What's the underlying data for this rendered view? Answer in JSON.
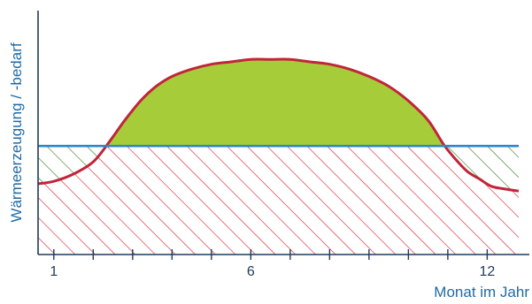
{
  "chart_data": {
    "type": "area",
    "xlabel": "Monat im Jahr",
    "ylabel": "Wärmeerzeugung / -bedarf",
    "x_ticks_labeled": [
      1,
      6,
      12
    ],
    "x_range": [
      0.6,
      12.8
    ],
    "y_range": [
      0,
      1
    ],
    "grid": false,
    "series": [
      {
        "values_x": [
          0.6,
          1.0,
          1.5,
          2.0,
          2.4,
          2.8,
          3.2,
          3.6,
          4.0,
          4.5,
          5.0,
          5.5,
          6.0,
          6.5,
          7.0,
          7.5,
          8.0,
          8.5,
          9.0,
          9.5,
          10.0,
          10.5,
          10.9,
          11.2,
          11.5,
          11.8,
          12.1,
          12.4,
          12.8
        ],
        "values_y": [
          0.29,
          0.3,
          0.33,
          0.38,
          0.46,
          0.55,
          0.63,
          0.69,
          0.73,
          0.76,
          0.78,
          0.79,
          0.8,
          0.8,
          0.8,
          0.79,
          0.78,
          0.76,
          0.73,
          0.69,
          0.63,
          0.55,
          0.45,
          0.39,
          0.34,
          0.31,
          0.28,
          0.27,
          0.26
        ],
        "color": "#c0253a"
      },
      {
        "constant_y": 0.445,
        "color": "#2e86c8"
      }
    ],
    "colors": {
      "surplus_fill": "#a6cc3a",
      "covered_hatch": "#d23a4a",
      "deficit_hatch": "#4c8a3c",
      "axis": "#1f3b5c"
    }
  }
}
